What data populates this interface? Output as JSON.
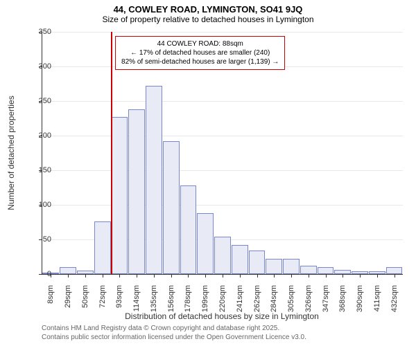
{
  "title_main": "44, COWLEY ROAD, LYMINGTON, SO41 9JQ",
  "title_sub": "Size of property relative to detached houses in Lymington",
  "y_axis_label": "Number of detached properties",
  "x_axis_label": "Distribution of detached houses by size in Lymington",
  "ylim": [
    0,
    350
  ],
  "ytick_step": 50,
  "yticks": [
    0,
    50,
    100,
    150,
    200,
    250,
    300,
    350
  ],
  "xtick_labels": [
    "8sqm",
    "29sqm",
    "50sqm",
    "72sqm",
    "93sqm",
    "114sqm",
    "135sqm",
    "156sqm",
    "178sqm",
    "199sqm",
    "220sqm",
    "241sqm",
    "262sqm",
    "284sqm",
    "305sqm",
    "326sqm",
    "347sqm",
    "368sqm",
    "390sqm",
    "411sqm",
    "432sqm"
  ],
  "bar_values": [
    2,
    10,
    5,
    76,
    227,
    238,
    272,
    192,
    128,
    88,
    54,
    42,
    34,
    22,
    22,
    12,
    10,
    6,
    4,
    4,
    10
  ],
  "bar_fill": "#e8eaf6",
  "bar_border": "#7986cb",
  "grid_color": "#e8e8e8",
  "marker_line_color": "#cc0000",
  "marker_position_index": 4,
  "callout": {
    "line1": "44 COWLEY ROAD: 88sqm",
    "line2": "← 17% of detached houses are smaller (240)",
    "line3": "82% of semi-detached houses are larger (1,139) →"
  },
  "attribution_line1": "Contains HM Land Registry data © Crown copyright and database right 2025.",
  "attribution_line2": "Contains public sector information licensed under the Open Government Licence v3.0."
}
